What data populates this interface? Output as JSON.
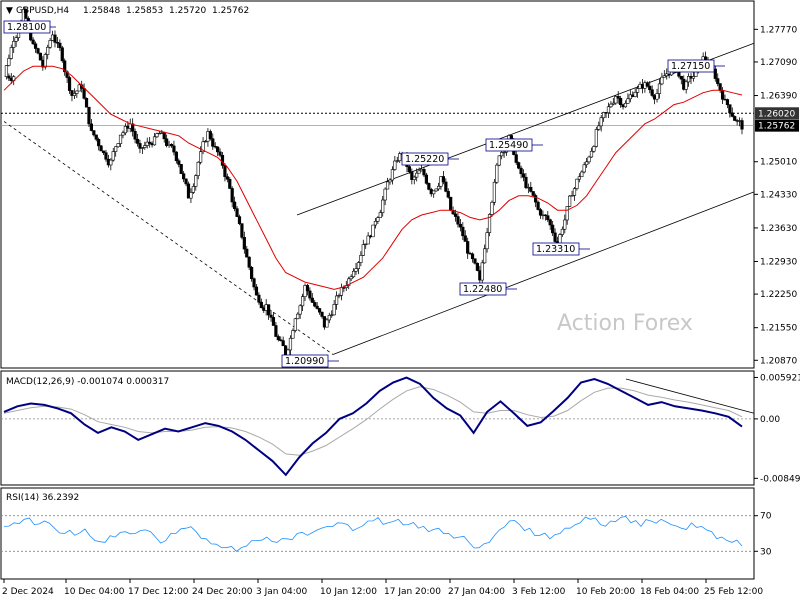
{
  "chart_data": [
    {
      "type": "candlestick",
      "symbol_header": "GBPUSD,H4",
      "ohlc_header": [
        "1.25848",
        "1.25853",
        "1.25720",
        "1.25762"
      ],
      "y_ticks": [
        "1.27770",
        "1.27090",
        "1.26390",
        "1.25010",
        "1.24330",
        "1.23630",
        "1.22930",
        "1.22250",
        "1.21550",
        "1.20870"
      ],
      "ylim": [
        1.2073,
        1.2834
      ],
      "current_price": "1.25762",
      "horizontal_level": "1.26020",
      "x_ticks": [
        "2 Dec 2024",
        "10 Dec 04:00",
        "17 Dec 12:00",
        "24 Dec 20:00",
        "3 Jan 04:00",
        "10 Jan 12:00",
        "17 Jan 20:00",
        "27 Jan 04:00",
        "3 Feb 12:00",
        "10 Feb 20:00",
        "18 Feb 04:00",
        "25 Feb 12:00"
      ],
      "annotations": [
        "1.28100",
        "1.20990",
        "1.25220",
        "1.25490",
        "1.22480",
        "1.23310",
        "1.27150"
      ],
      "watermark": "Action Forex",
      "series": [
        {
          "name": "Close",
          "values": [
            1.268,
            1.276,
            1.281,
            1.274,
            1.27,
            1.277,
            1.272,
            1.264,
            1.266,
            1.256,
            1.253,
            1.25,
            1.256,
            1.258,
            1.252,
            1.254,
            1.256,
            1.253,
            1.25,
            1.243,
            1.25,
            1.256,
            1.252,
            1.246,
            1.238,
            1.23,
            1.222,
            1.22,
            1.214,
            1.21,
            1.218,
            1.224,
            1.22,
            1.216,
            1.22,
            1.224,
            1.228,
            1.233,
            1.236,
            1.242,
            1.248,
            1.2522,
            1.246,
            1.248,
            1.244,
            1.247,
            1.24,
            1.236,
            1.23,
            1.2248,
            1.24,
            1.252,
            1.2549,
            1.248,
            1.244,
            1.24,
            1.238,
            1.2331,
            1.24,
            1.246,
            1.25,
            1.256,
            1.26,
            1.264,
            1.262,
            1.265,
            1.266,
            1.264,
            1.268,
            1.27,
            1.266,
            1.268,
            1.2715,
            1.269,
            1.264,
            1.26,
            1.2576
          ]
        },
        {
          "name": "MA",
          "values": [
            1.265,
            1.267,
            1.269,
            1.27,
            1.27,
            1.27,
            1.2695,
            1.268,
            1.266,
            1.264,
            1.262,
            1.26,
            1.259,
            1.258,
            1.2575,
            1.257,
            1.2565,
            1.256,
            1.2555,
            1.254,
            1.253,
            1.252,
            1.251,
            1.249,
            1.246,
            1.242,
            1.238,
            1.234,
            1.23,
            1.227,
            1.226,
            1.225,
            1.2245,
            1.224,
            1.2235,
            1.224,
            1.225,
            1.226,
            1.228,
            1.23,
            1.233,
            1.236,
            1.238,
            1.239,
            1.2395,
            1.24,
            1.24,
            1.2395,
            1.2385,
            1.238,
            1.2385,
            1.24,
            1.242,
            1.243,
            1.243,
            1.2425,
            1.2415,
            1.24,
            1.24,
            1.241,
            1.243,
            1.246,
            1.249,
            1.252,
            1.254,
            1.256,
            1.258,
            1.259,
            1.2605,
            1.262,
            1.2625,
            1.2635,
            1.2645,
            1.265,
            1.265,
            1.2645,
            1.264
          ]
        }
      ]
    },
    {
      "type": "line",
      "title": "MACD(12,26,9) -0.001074 0.000317",
      "y_ticks": [
        "0.005921",
        "0.00",
        "-0.00849"
      ],
      "ylim": [
        -0.0093,
        0.0067
      ],
      "series": [
        {
          "name": "MACD",
          "values": [
            0.001,
            0.0018,
            0.0022,
            0.002,
            0.0015,
            0.0008,
            -0.0008,
            -0.002,
            -0.0012,
            -0.0018,
            -0.003,
            -0.0022,
            -0.0014,
            -0.0018,
            -0.0012,
            -0.0006,
            -0.001,
            -0.0018,
            -0.003,
            -0.0045,
            -0.006,
            -0.008,
            -0.0055,
            -0.0035,
            -0.002,
            0.0,
            0.0008,
            0.0022,
            0.004,
            0.0052,
            0.0059,
            0.005,
            0.003,
            0.0015,
            0.0005,
            -0.002,
            0.001,
            0.0025,
            0.0008,
            -0.001,
            -0.0005,
            0.0012,
            0.003,
            0.0052,
            0.0057,
            0.005,
            0.004,
            0.003,
            0.002,
            0.0024,
            0.0018,
            0.0015,
            0.0012,
            0.0008,
            0.0003,
            -0.0011
          ]
        },
        {
          "name": "Signal",
          "values": [
            0.0008,
            0.0012,
            0.0016,
            0.0018,
            0.0017,
            0.0014,
            0.0006,
            -0.0004,
            -0.0008,
            -0.0012,
            -0.0018,
            -0.002,
            -0.0018,
            -0.0018,
            -0.0016,
            -0.0012,
            -0.0011,
            -0.0013,
            -0.0018,
            -0.0026,
            -0.0036,
            -0.005,
            -0.0052,
            -0.0046,
            -0.0038,
            -0.0026,
            -0.0014,
            -0.0001,
            0.0014,
            0.0028,
            0.004,
            0.0046,
            0.0042,
            0.0034,
            0.0024,
            0.001,
            0.0008,
            0.0012,
            0.0012,
            0.0006,
            0.0002,
            0.0004,
            0.0012,
            0.0026,
            0.0038,
            0.0044,
            0.0044,
            0.004,
            0.0034,
            0.0031,
            0.0027,
            0.0024,
            0.002,
            0.0016,
            0.0012,
            0.0003
          ]
        }
      ]
    },
    {
      "type": "line",
      "title": "RSI(14) 36.2392",
      "y_ticks": [
        "70",
        "30"
      ],
      "ylim": [
        0,
        100
      ],
      "series": [
        {
          "name": "RSI",
          "values": [
            58,
            62,
            66,
            60,
            64,
            56,
            50,
            48,
            55,
            42,
            40,
            46,
            52,
            50,
            54,
            46,
            42,
            50,
            56,
            52,
            44,
            38,
            34,
            30,
            36,
            42,
            46,
            40,
            44,
            50,
            48,
            54,
            58,
            62,
            60,
            56,
            64,
            68,
            62,
            66,
            60,
            56,
            52,
            56,
            50,
            46,
            40,
            34,
            40,
            54,
            64,
            60,
            56,
            48,
            44,
            50,
            56,
            62,
            66,
            60,
            64,
            68,
            62,
            58,
            64,
            66,
            60,
            56,
            62,
            58,
            52,
            46,
            40,
            36
          ]
        }
      ]
    }
  ]
}
